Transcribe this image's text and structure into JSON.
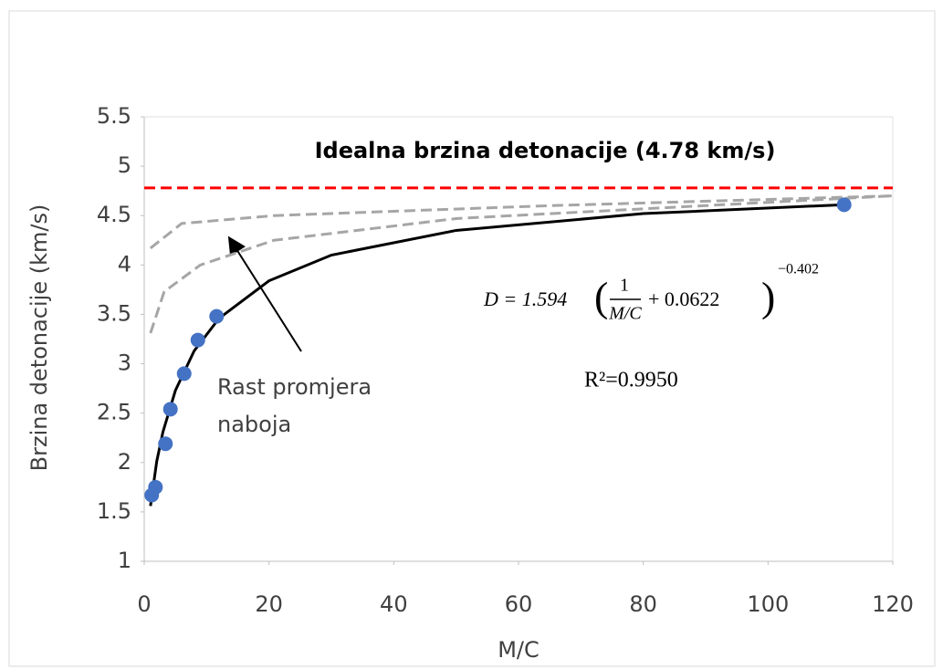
{
  "chart_data": {
    "type": "scatter",
    "xlabel": "M/C",
    "ylabel": "Brzina detonacije (km/s)",
    "xlim": [
      0,
      120
    ],
    "ylim": [
      1,
      5.5
    ],
    "xticks": [
      0,
      20,
      40,
      60,
      80,
      100,
      120
    ],
    "yticks": [
      1,
      1.5,
      2,
      2.5,
      3,
      3.5,
      4,
      4.5,
      5,
      5.5
    ],
    "grid": false,
    "series": [
      {
        "style": "markers",
        "color": "#4472c4",
        "x": [
          1.2,
          1.8,
          3.4,
          4.2,
          6.4,
          8.6,
          11.6,
          112.2
        ],
        "values": [
          1.67,
          1.75,
          2.19,
          2.54,
          2.9,
          3.24,
          3.48,
          4.61
        ]
      },
      {
        "style": "line",
        "color": "#000000",
        "x": [
          1,
          2,
          3,
          5,
          8,
          12,
          20,
          30,
          50,
          80,
          112
        ],
        "values": [
          1.56,
          2.01,
          2.31,
          2.73,
          3.13,
          3.46,
          3.84,
          4.1,
          4.35,
          4.52,
          4.61
        ]
      },
      {
        "style": "dashed",
        "color": "#a6a6a6",
        "x": [
          1,
          6,
          20.8,
          64.7,
          120
        ],
        "values": [
          4.17,
          4.42,
          4.5,
          4.6,
          4.7
        ]
      },
      {
        "style": "dashed",
        "color": "#a6a6a6",
        "x": [
          1,
          3.2,
          9,
          20.8,
          50,
          120
        ],
        "values": [
          3.31,
          3.73,
          4.0,
          4.25,
          4.47,
          4.7
        ]
      },
      {
        "style": "dashed",
        "color": "#ff0000",
        "x": [
          0,
          120
        ],
        "values": [
          4.78,
          4.78
        ]
      }
    ],
    "annotations": {
      "ideal": "Idealna brzina detonacije (4.78 km/s)",
      "growth": [
        "Rast promjera",
        "naboja"
      ],
      "equation": {
        "lhs": "D = 1.594",
        "numerator": "1",
        "denominator": "M/C",
        "plus": "+ 0.0622",
        "exponent": "−0.402"
      },
      "r2": "R²=0.9950"
    }
  }
}
